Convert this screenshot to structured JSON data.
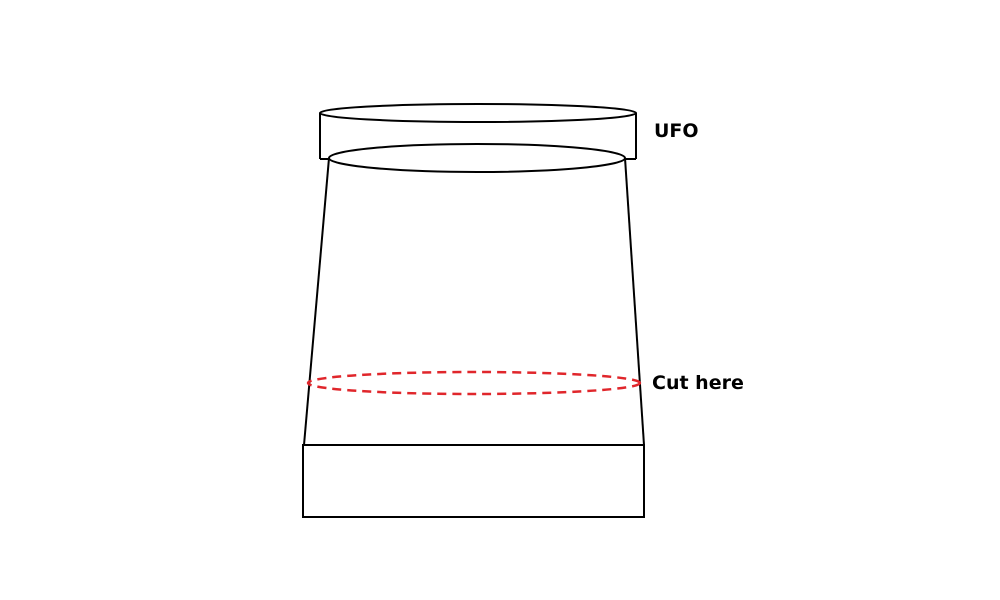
{
  "labels": {
    "ufo": "UFO",
    "cut": "Cut here"
  },
  "colors": {
    "outline": "#000000",
    "cut_line": "#e0262b",
    "background": "#ffffff"
  }
}
